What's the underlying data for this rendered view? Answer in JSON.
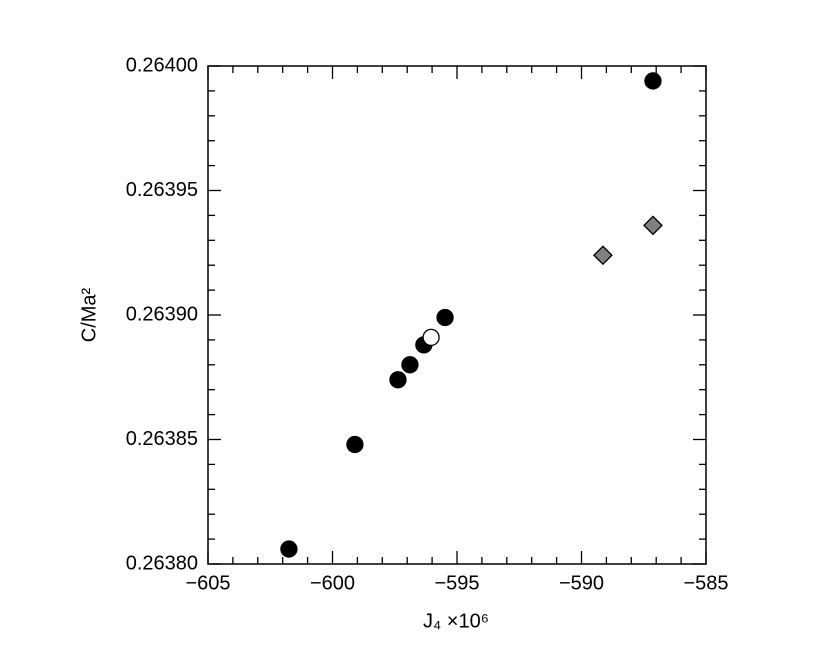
{
  "chart_data": {
    "type": "scatter",
    "x_label": "J₄ ×10⁶",
    "y_label": "C/Ma²",
    "xlim": [
      -605,
      -585
    ],
    "ylim": [
      0.2638,
      0.264
    ],
    "xticks": [
      {
        "value": -605,
        "label": "−605"
      },
      {
        "value": -600,
        "label": "−600"
      },
      {
        "value": -595,
        "label": "−595"
      },
      {
        "value": -590,
        "label": "−590"
      },
      {
        "value": -585,
        "label": "−585"
      }
    ],
    "yticks": [
      {
        "value": 0.2638,
        "label": "0.26380"
      },
      0.26385,
      {
        "value": 0.2639,
        "label": "0.26390"
      },
      0.26395,
      {
        "value": 0.264,
        "label": "0.26400"
      }
    ],
    "xminorticks": [
      -604,
      -603,
      -602,
      -601,
      -599,
      -598,
      -597,
      -596,
      -594,
      -593,
      -592,
      -591,
      -589,
      -588,
      -587,
      -586
    ],
    "yminorticks": [
      0.26381,
      0.26382,
      0.26383,
      0.26384,
      0.26386,
      0.26387,
      0.26388,
      0.26389,
      0.26391,
      0.26392,
      0.26393,
      0.26394,
      0.26396,
      0.26397,
      0.26398,
      0.26399
    ],
    "series": [
      {
        "marker": "circle",
        "color": "#000000",
        "x": [
          -601.75,
          -599.1,
          -597.37,
          -596.89,
          -596.33,
          -595.48,
          -587.13
        ],
        "y": [
          0.263806,
          0.263848,
          0.263874,
          0.26388,
          0.263888,
          0.263899,
          0.263994
        ]
      },
      {
        "marker": "circle",
        "color": "#ffffff",
        "x": [
          -596.04
        ],
        "y": [
          0.263891
        ]
      },
      {
        "marker": "diamond",
        "color": "#808080",
        "x": [
          -589.14,
          -587.13
        ],
        "y": [
          0.263924,
          0.263936
        ]
      }
    ]
  }
}
